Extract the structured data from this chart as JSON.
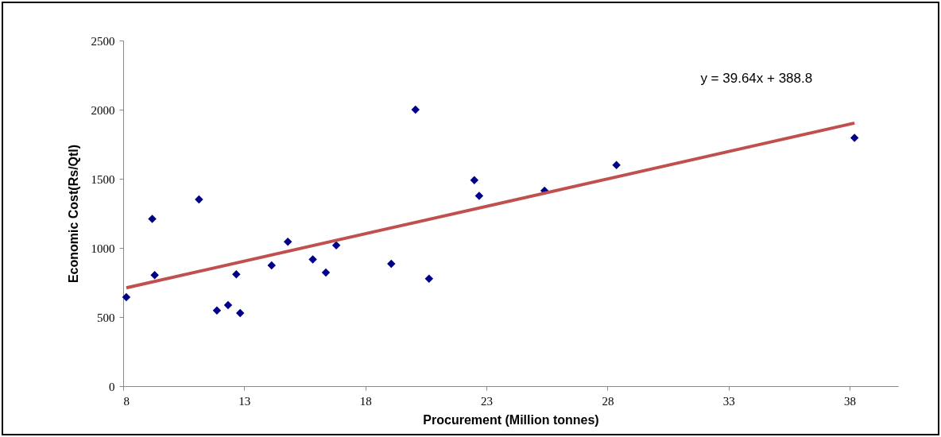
{
  "chart_data": {
    "type": "scatter",
    "xlabel": "Procurement (Million tonnes)",
    "ylabel": "Economic Cost(Rs/Qtl)",
    "annotations": [
      "y = 39.64x + 388.8"
    ],
    "xlim": [
      8,
      40
    ],
    "xticks": [
      8,
      13,
      18,
      23,
      28,
      33,
      38
    ],
    "ylim": [
      0,
      2500
    ],
    "yticks": [
      0,
      500,
      1000,
      1500,
      2000,
      2500
    ],
    "grid": false,
    "series": [
      {
        "color": "#00008b",
        "marker": "diamond",
        "x": [
          8.13,
          9.2,
          9.3,
          11.13,
          11.87,
          12.33,
          12.67,
          12.83,
          14.13,
          14.8,
          15.83,
          16.37,
          16.8,
          19.07,
          20.07,
          20.63,
          22.5,
          22.7,
          25.4,
          28.37,
          38.2
        ],
        "values": [
          643,
          1210,
          803,
          1350,
          548,
          586,
          809,
          529,
          873,
          1045,
          917,
          822,
          1019,
          885,
          2000,
          777,
          1490,
          1376,
          1414,
          1599,
          1796
        ]
      },
      {
        "type": "line",
        "color": "#c0504d",
        "line_style": "solid",
        "x": [
          8.13,
          38.2
        ],
        "values": [
          711,
          1903
        ]
      }
    ]
  }
}
